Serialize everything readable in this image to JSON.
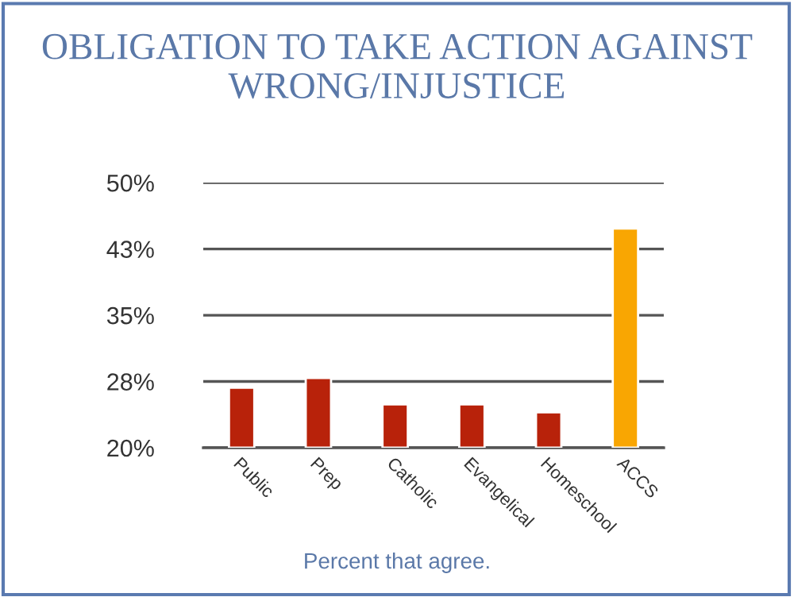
{
  "chart_data": {
    "type": "bar",
    "title": "OBLIGATION TO TAKE ACTION AGAINST WRONG/INJUSTICE",
    "categories": [
      "Public",
      "Prep",
      "Catholic",
      "Evangelical",
      "Homeschool",
      "ACCS"
    ],
    "values": [
      26.8,
      27.9,
      24.9,
      24.9,
      24.0,
      44.8
    ],
    "colors": [
      "#b8220a",
      "#b8220a",
      "#b8220a",
      "#b8220a",
      "#b8220a",
      "#f9a602"
    ],
    "ylim": [
      20,
      50
    ],
    "yticks": [
      {
        "value": 20,
        "label": "20%"
      },
      {
        "value": 27.5,
        "label": "28%"
      },
      {
        "value": 35,
        "label": "35%"
      },
      {
        "value": 42.5,
        "label": "43%"
      },
      {
        "value": 50,
        "label": "50%"
      }
    ],
    "grid": "y",
    "annotations": [
      "Percent that agree."
    ]
  }
}
